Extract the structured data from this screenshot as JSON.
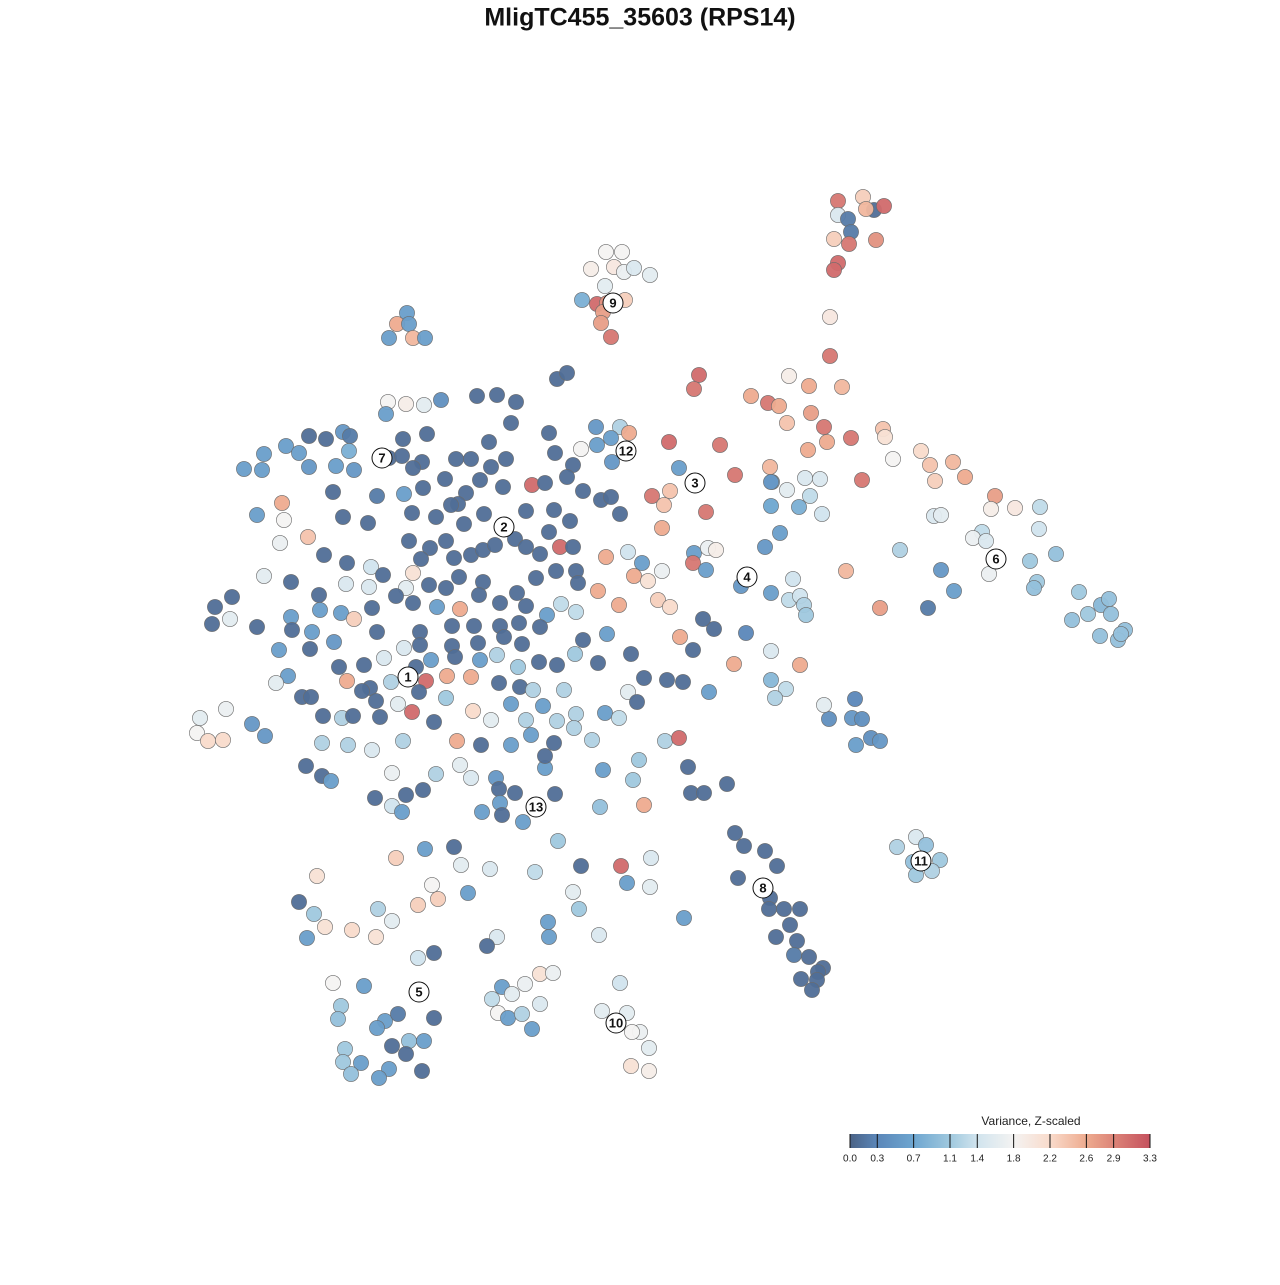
{
  "chart_data": {
    "type": "scatter",
    "title": "MligTC455_35603 (RPS14)",
    "xlim": [
      0,
      1280
    ],
    "ylim": [
      1280,
      0
    ],
    "x": [
      838,
      863,
      874,
      884,
      866,
      838,
      848,
      851,
      834,
      849,
      876,
      838,
      834,
      830,
      830,
      606,
      622,
      591,
      614,
      624,
      634,
      650,
      605,
      582,
      597,
      607,
      625,
      603,
      601,
      611,
      407,
      397,
      409,
      389,
      413,
      425,
      699,
      694,
      789,
      809,
      842,
      751,
      768,
      779,
      811,
      787,
      824,
      827,
      851,
      808,
      883,
      885,
      893,
      921,
      930,
      953,
      965,
      935,
      862,
      770,
      805,
      820,
      787,
      772,
      810,
      822,
      799,
      771,
      995,
      1015,
      991,
      1040,
      1039,
      934,
      941,
      982,
      973,
      986,
      900,
      1030,
      1056,
      1037,
      1034,
      989,
      941,
      954,
      928,
      846,
      880,
      1079,
      1072,
      1088,
      1101,
      1109,
      1111,
      1100,
      1125,
      1118,
      1121,
      771,
      780,
      916,
      897,
      926,
      913,
      940,
      932,
      916,
      855,
      829,
      852,
      862,
      871,
      880,
      856,
      824,
      771,
      786,
      775,
      771,
      800,
      734,
      709,
      741,
      771,
      793,
      789,
      800,
      804,
      806,
      765,
      746,
      714,
      703,
      735,
      744,
      765,
      777,
      738,
      770,
      769,
      784,
      800,
      790,
      797,
      776,
      809,
      794,
      823,
      818,
      801,
      817,
      812,
      727,
      688,
      691,
      704,
      557,
      567,
      388,
      406,
      424,
      441,
      386,
      477,
      497,
      516,
      511,
      596,
      620,
      629,
      309,
      326,
      343,
      350,
      286,
      264,
      299,
      403,
      427,
      549,
      489,
      581,
      597,
      611,
      669,
      720,
      349,
      389,
      402,
      422,
      456,
      471,
      506,
      491,
      555,
      573,
      612,
      679,
      735,
      244,
      262,
      309,
      336,
      354,
      413,
      445,
      480,
      333,
      377,
      404,
      423,
      466,
      458,
      503,
      532,
      545,
      567,
      583,
      601,
      611,
      652,
      670,
      664,
      706,
      282,
      257,
      284,
      343,
      368,
      412,
      436,
      451,
      464,
      484,
      526,
      554,
      570,
      620,
      280,
      308,
      324,
      347,
      409,
      430,
      421,
      446,
      454,
      471,
      483,
      495,
      515,
      526,
      540,
      560,
      573,
      549,
      606,
      628,
      642,
      662,
      694,
      708,
      716,
      693,
      264,
      291,
      319,
      346,
      371,
      383,
      369,
      413,
      406,
      396,
      429,
      446,
      459,
      483,
      517,
      536,
      556,
      576,
      578,
      598,
      634,
      648,
      662,
      706,
      215,
      232,
      212,
      230,
      257,
      291,
      320,
      341,
      354,
      372,
      413,
      437,
      460,
      479,
      500,
      526,
      547,
      561,
      576,
      619,
      658,
      670,
      312,
      292,
      377,
      420,
      452,
      474,
      500,
      519,
      540,
      607,
      583,
      680,
      279,
      310,
      334,
      404,
      420,
      452,
      478,
      504,
      522,
      339,
      364,
      384,
      416,
      431,
      455,
      480,
      497,
      518,
      539,
      557,
      575,
      598,
      631,
      644,
      667,
      683,
      693,
      288,
      276,
      302,
      347,
      370,
      391,
      426,
      447,
      471,
      499,
      520,
      533,
      564,
      628,
      637,
      311,
      362,
      376,
      419,
      446,
      511,
      543,
      473,
      491,
      526,
      557,
      576,
      605,
      619,
      323,
      342,
      353,
      380,
      398,
      412,
      434,
      200,
      226,
      252,
      197,
      208,
      223,
      265,
      322,
      348,
      372,
      403,
      457,
      481,
      511,
      531,
      554,
      574,
      592,
      665,
      679,
      306,
      322,
      331,
      392,
      436,
      460,
      471,
      496,
      545,
      545,
      603,
      639,
      633,
      375,
      392,
      402,
      406,
      423,
      499,
      500,
      515,
      482,
      502,
      555,
      600,
      644,
      523,
      558,
      425,
      454,
      396,
      317,
      461,
      490,
      535,
      581,
      621,
      651,
      432,
      468,
      418,
      438,
      299,
      314,
      307,
      325,
      352,
      376,
      378,
      392,
      627,
      650,
      573,
      579,
      684,
      548,
      549,
      497,
      487,
      599,
      434,
      418,
      333,
      364,
      502,
      525,
      540,
      553,
      492,
      512,
      540,
      498,
      508,
      522,
      532,
      341,
      338,
      385,
      377,
      398,
      434,
      409,
      424,
      392,
      406,
      345,
      343,
      361,
      389,
      422,
      351,
      379,
      620,
      602,
      627,
      640,
      632,
      649,
      631,
      649
    ],
    "y": [
      201,
      197,
      210,
      206,
      209,
      215,
      219,
      232,
      239,
      244,
      240,
      263,
      270,
      317,
      356,
      252,
      252,
      269,
      267,
      272,
      268,
      275,
      286,
      300,
      304,
      303,
      300,
      312,
      323,
      337,
      313,
      324,
      324,
      338,
      338,
      338,
      375,
      389,
      376,
      386,
      387,
      396,
      403,
      406,
      413,
      423,
      427,
      442,
      438,
      450,
      429,
      437,
      459,
      451,
      465,
      462,
      477,
      481,
      480,
      467,
      478,
      479,
      490,
      482,
      496,
      514,
      507,
      506,
      496,
      508,
      509,
      507,
      529,
      516,
      515,
      532,
      538,
      541,
      550,
      561,
      554,
      582,
      588,
      574,
      570,
      591,
      608,
      571,
      608,
      592,
      620,
      614,
      605,
      599,
      614,
      636,
      630,
      640,
      634,
      482,
      533,
      837,
      847,
      845,
      862,
      860,
      871,
      875,
      699,
      719,
      718,
      719,
      738,
      741,
      745,
      705,
      680,
      689,
      698,
      651,
      665,
      664,
      692,
      586,
      593,
      579,
      600,
      596,
      605,
      615,
      547,
      633,
      629,
      619,
      833,
      846,
      851,
      866,
      878,
      898,
      909,
      909,
      909,
      925,
      941,
      937,
      957,
      955,
      968,
      972,
      979,
      980,
      990,
      784,
      767,
      793,
      793,
      379,
      373,
      402,
      404,
      405,
      400,
      414,
      396,
      395,
      402,
      423,
      427,
      427,
      433,
      436,
      439,
      432,
      436,
      446,
      454,
      453,
      439,
      434,
      433,
      442,
      449,
      445,
      438,
      442,
      445,
      451,
      458,
      456,
      462,
      459,
      459,
      459,
      467,
      453,
      465,
      462,
      468,
      475,
      469,
      470,
      467,
      466,
      470,
      468,
      479,
      480,
      492,
      496,
      494,
      488,
      493,
      504,
      487,
      485,
      483,
      477,
      491,
      500,
      497,
      496,
      491,
      505,
      512,
      503,
      515,
      520,
      517,
      523,
      513,
      517,
      505,
      524,
      514,
      511,
      510,
      521,
      514,
      543,
      537,
      555,
      563,
      541,
      548,
      559,
      541,
      558,
      555,
      550,
      545,
      539,
      547,
      554,
      547,
      547,
      532,
      557,
      552,
      563,
      528,
      553,
      548,
      550,
      563,
      576,
      582,
      595,
      584,
      567,
      575,
      587,
      573,
      588,
      596,
      585,
      588,
      577,
      582,
      593,
      578,
      571,
      571,
      583,
      591,
      576,
      581,
      571,
      570,
      607,
      597,
      624,
      619,
      627,
      617,
      610,
      613,
      619,
      608,
      603,
      607,
      609,
      595,
      603,
      606,
      615,
      604,
      612,
      605,
      600,
      607,
      632,
      630,
      632,
      632,
      626,
      626,
      626,
      623,
      627,
      634,
      640,
      637,
      650,
      649,
      642,
      648,
      645,
      646,
      643,
      637,
      644,
      667,
      665,
      658,
      667,
      660,
      657,
      660,
      655,
      667,
      662,
      665,
      654,
      663,
      654,
      678,
      680,
      682,
      650,
      676,
      683,
      697,
      681,
      688,
      682,
      681,
      676,
      677,
      683,
      687,
      690,
      690,
      692,
      702,
      697,
      691,
      701,
      692,
      698,
      704,
      706,
      711,
      720,
      720,
      721,
      714,
      713,
      718,
      716,
      718,
      716,
      717,
      704,
      712,
      722,
      718,
      709,
      724,
      733,
      741,
      740,
      736,
      743,
      745,
      750,
      741,
      741,
      745,
      745,
      735,
      743,
      728,
      740,
      741,
      738,
      766,
      776,
      781,
      773,
      774,
      765,
      778,
      778,
      768,
      756,
      770,
      760,
      780,
      798,
      806,
      812,
      795,
      790,
      789,
      803,
      793,
      812,
      815,
      794,
      807,
      805,
      822,
      841,
      849,
      847,
      858,
      876,
      865,
      869,
      872,
      866,
      866,
      858,
      885,
      893,
      905,
      899,
      902,
      914,
      938,
      927,
      930,
      937,
      909,
      921,
      883,
      887,
      892,
      909,
      918,
      922,
      937,
      937,
      946,
      935,
      953,
      958,
      983,
      986,
      987,
      984,
      974,
      973,
      999,
      994,
      1004,
      1013,
      1018,
      1014,
      1029,
      1006,
      1019,
      1021,
      1028,
      1014,
      1018,
      1041,
      1041,
      1046,
      1054,
      1049,
      1062,
      1063,
      1069,
      1071,
      1074,
      1078,
      983,
      1011,
      1013,
      1032,
      1032,
      1048,
      1066,
      1071
    ],
    "values": [
      3.0,
      2.3,
      0.1,
      3.1,
      2.5,
      1.5,
      0.2,
      0.2,
      2.3,
      3.0,
      2.8,
      3.1,
      3.1,
      2.0,
      3.0,
      1.8,
      1.8,
      1.9,
      2.0,
      1.7,
      1.5,
      1.6,
      1.6,
      0.8,
      3.1,
      2.8,
      2.3,
      2.7,
      2.7,
      3.0,
      0.6,
      2.6,
      0.6,
      0.6,
      2.5,
      0.6,
      3.1,
      3.0,
      1.9,
      2.6,
      2.5,
      2.6,
      3.0,
      2.6,
      2.7,
      2.4,
      3.0,
      2.6,
      3.0,
      2.6,
      2.4,
      2.1,
      1.8,
      2.2,
      2.4,
      2.5,
      2.6,
      2.3,
      3.0,
      2.5,
      1.5,
      1.5,
      1.6,
      0.8,
      1.3,
      1.4,
      0.8,
      0.7,
      2.7,
      2.0,
      1.9,
      1.3,
      1.4,
      1.5,
      1.6,
      1.3,
      1.7,
      1.5,
      1.2,
      1.1,
      1.0,
      1.1,
      1.0,
      1.7,
      0.5,
      0.6,
      0.2,
      2.5,
      2.7,
      1.1,
      1.0,
      1.1,
      0.9,
      1.0,
      1.0,
      1.0,
      1.0,
      1.0,
      1.0,
      0.5,
      0.6,
      1.5,
      1.2,
      1.0,
      1.0,
      1.1,
      1.2,
      1.1,
      0.3,
      0.4,
      0.5,
      0.4,
      0.4,
      0.5,
      0.6,
      1.6,
      0.9,
      1.3,
      1.2,
      1.5,
      2.6,
      2.6,
      0.6,
      0.5,
      0.6,
      1.4,
      1.3,
      1.4,
      1.2,
      1.1,
      0.5,
      0.3,
      0.1,
      0.1,
      0.1,
      0.1,
      0.1,
      0.1,
      0.1,
      0.1,
      0.1,
      0.1,
      0.1,
      0.1,
      0.1,
      0.1,
      0.1,
      0.2,
      0.1,
      0.1,
      0.1,
      0.1,
      0.1,
      0.1,
      0.1,
      0.1,
      0.1,
      0.1,
      0.1,
      1.8,
      1.9,
      1.6,
      0.4,
      0.6,
      0.1,
      0.1,
      0.1,
      0.1,
      0.5,
      1.2,
      2.6,
      0.1,
      0.1,
      0.5,
      0.2,
      0.6,
      0.6,
      0.6,
      0.1,
      0.1,
      0.1,
      0.1,
      1.8,
      0.6,
      0.6,
      3.1,
      3.0,
      0.8,
      0.1,
      0.1,
      0.1,
      0.1,
      0.1,
      0.1,
      0.1,
      0.1,
      0.1,
      0.5,
      0.6,
      3.0,
      0.6,
      0.6,
      0.5,
      0.6,
      0.5,
      0.1,
      0.1,
      0.1,
      0.1,
      0.2,
      0.6,
      0.1,
      0.1,
      0.1,
      0.1,
      3.1,
      0.1,
      0.1,
      0.1,
      0.1,
      0.1,
      3.0,
      2.4,
      2.4,
      3.0,
      2.6,
      0.6,
      1.8,
      0.1,
      0.1,
      0.1,
      0.1,
      0.1,
      0.1,
      0.1,
      0.1,
      0.1,
      0.1,
      0.1,
      1.7,
      2.4,
      0.1,
      0.1,
      0.1,
      0.1,
      0.1,
      0.1,
      0.1,
      0.1,
      0.1,
      0.1,
      0.1,
      0.1,
      0.1,
      3.1,
      0.1,
      0.1,
      2.6,
      1.4,
      0.6,
      2.6,
      0.6,
      1.7,
      1.9,
      3.0,
      1.6,
      0.1,
      0.1,
      1.5,
      1.4,
      0.1,
      1.5,
      2.1,
      1.6,
      0.1,
      0.1,
      0.1,
      0.1,
      0.1,
      0.1,
      0.1,
      0.1,
      0.1,
      0.1,
      2.6,
      2.6,
      2.1,
      1.7,
      0.6,
      0.1,
      0.1,
      0.1,
      1.6,
      0.1,
      0.6,
      0.6,
      0.6,
      2.3,
      0.1,
      0.1,
      0.6,
      2.6,
      0.1,
      0.1,
      0.1,
      0.6,
      1.3,
      1.3,
      2.6,
      2.3,
      2.2,
      0.6,
      0.1,
      0.1,
      0.1,
      0.1,
      0.1,
      0.1,
      0.1,
      0.1,
      0.6,
      0.1,
      2.6,
      0.6,
      0.1,
      0.5,
      1.5,
      0.1,
      0.1,
      0.1,
      0.1,
      0.1,
      0.1,
      0.1,
      1.5,
      0.1,
      0.6,
      0.1,
      0.6,
      1.2,
      1.1,
      0.1,
      0.1,
      1.1,
      0.1,
      0.1,
      0.1,
      0.1,
      0.1,
      0.1,
      0.6,
      1.6,
      0.1,
      2.6,
      0.1,
      1.2,
      3.1,
      2.6,
      2.6,
      0.1,
      0.1,
      1.2,
      1.2,
      1.6,
      0.1,
      0.1,
      0.1,
      0.1,
      0.1,
      1.1,
      0.6,
      0.6,
      2.2,
      1.6,
      1.2,
      1.2,
      1.2,
      0.6,
      1.3,
      0.1,
      1.2,
      0.1,
      0.1,
      1.6,
      3.1,
      0.1,
      1.6,
      1.7,
      0.5,
      1.8,
      2.2,
      2.2,
      0.5,
      1.2,
      1.2,
      1.5,
      1.2,
      2.6,
      0.1,
      0.6,
      0.6,
      0.1,
      1.2,
      1.2,
      1.2,
      3.1,
      0.1,
      0.1,
      0.6,
      1.7,
      1.2,
      1.6,
      1.5,
      0.5,
      0.6,
      0.1,
      0.6,
      1.1,
      1.1,
      0.1,
      1.4,
      0.6,
      0.1,
      0.1,
      0.1,
      0.6,
      0.1,
      0.6,
      0.1,
      0.1,
      1.0,
      2.6,
      0.6,
      1.1,
      0.6,
      0.1,
      2.3,
      2.1,
      1.6,
      1.5,
      1.3,
      0.1,
      3.1,
      1.5,
      1.8,
      0.6,
      2.3,
      2.3,
      0.1,
      1.1,
      0.6,
      2.1,
      2.2,
      2.1,
      1.2,
      1.6,
      0.6,
      1.6,
      1.6,
      1.1,
      0.6,
      0.6,
      0.6,
      1.5,
      0.1,
      1.5,
      0.1,
      1.4,
      1.8,
      0.6,
      0.6,
      1.7,
      2.1,
      1.7,
      1.3,
      1.6,
      1.5,
      1.8,
      0.6,
      1.2,
      0.6,
      1.1,
      1.0,
      0.6,
      0.6,
      0.2,
      0.1,
      1.0,
      0.6,
      0.1,
      0.1,
      1.1,
      1.1,
      0.6,
      0.6,
      0.1,
      1.0,
      0.6,
      1.4,
      1.6,
      1.6,
      1.7,
      1.8,
      1.6,
      2.1,
      1.9
    ],
    "annotations": [
      {
        "text": "1",
        "x": 408,
        "y": 677
      },
      {
        "text": "2",
        "x": 504,
        "y": 527
      },
      {
        "text": "3",
        "x": 695,
        "y": 483
      },
      {
        "text": "4",
        "x": 747,
        "y": 577
      },
      {
        "text": "5",
        "x": 419,
        "y": 992
      },
      {
        "text": "6",
        "x": 996,
        "y": 559
      },
      {
        "text": "7",
        "x": 382,
        "y": 458
      },
      {
        "text": "8",
        "x": 763,
        "y": 888
      },
      {
        "text": "9",
        "x": 613,
        "y": 303
      },
      {
        "text": "10",
        "x": 616,
        "y": 1023
      },
      {
        "text": "11",
        "x": 921,
        "y": 861
      },
      {
        "text": "12",
        "x": 626,
        "y": 451
      },
      {
        "text": "13",
        "x": 536,
        "y": 807
      }
    ],
    "colorbar": {
      "title": "Variance, Z-scaled",
      "clim": [
        0,
        3.3
      ],
      "ticks": [
        {
          "value": 0,
          "label": "0.0"
        },
        0.3,
        0.7,
        1.1,
        1.4,
        1.8,
        2.2,
        2.6,
        2.9,
        3.3
      ],
      "colors": [
        "#4a6286",
        "#5b87b9",
        "#6ea6d0",
        "#9fc8de",
        "#d1e4ee",
        "#f4f3f2",
        "#f9dbcb",
        "#eeab8f",
        "#dc8478",
        "#c5515e"
      ]
    }
  }
}
